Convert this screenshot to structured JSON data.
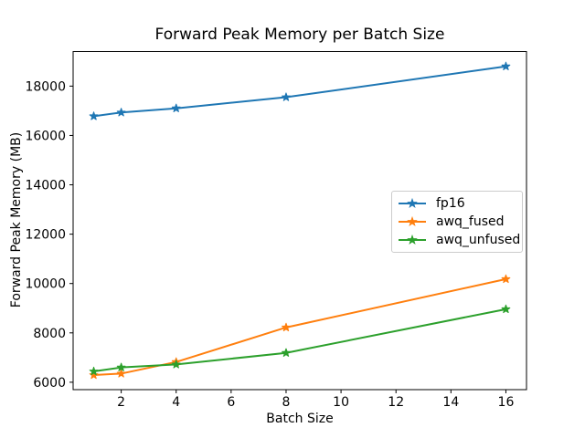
{
  "chart_data": {
    "type": "line",
    "title": "Forward Peak Memory per Batch Size",
    "xlabel": "Batch Size",
    "ylabel": "Forward Peak Memory (MB)",
    "x": [
      1,
      2,
      4,
      8,
      16
    ],
    "series": [
      {
        "name": "fp16",
        "color": "#1f77b4",
        "values": [
          16780,
          16930,
          17100,
          17550,
          18800
        ]
      },
      {
        "name": "awq_fused",
        "color": "#ff7f0e",
        "values": [
          6290,
          6350,
          6820,
          8220,
          10180
        ]
      },
      {
        "name": "awq_unfused",
        "color": "#2ca02c",
        "values": [
          6440,
          6600,
          6720,
          7190,
          8960
        ]
      }
    ],
    "marker": "star",
    "xlim": [
      0.25,
      16.75
    ],
    "ylim": [
      5700,
      19400
    ],
    "xticks": [
      2,
      4,
      6,
      8,
      10,
      12,
      14,
      16
    ],
    "yticks": [
      6000,
      8000,
      10000,
      12000,
      14000,
      16000,
      18000
    ],
    "grid": false,
    "legend_position": "center right",
    "spine_color": "#000000",
    "background_color": "#ffffff"
  }
}
